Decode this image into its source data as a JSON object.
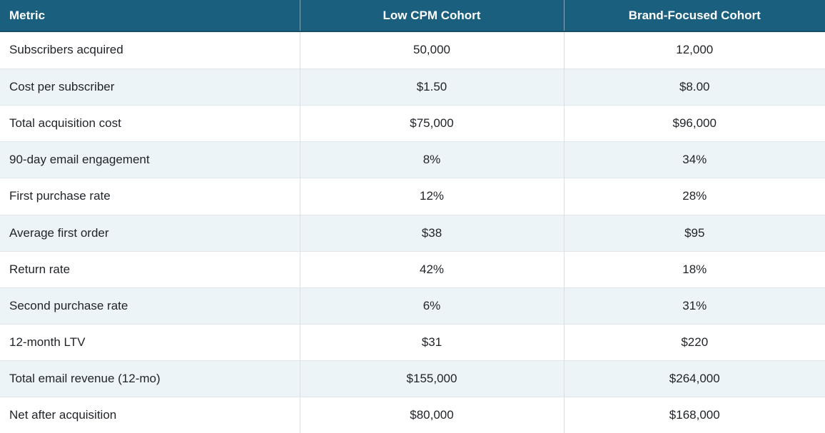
{
  "chart_data": {
    "type": "table",
    "columns": [
      "Metric",
      "Low CPM Cohort",
      "Brand-Focused Cohort"
    ],
    "rows": [
      [
        "Subscribers acquired",
        "50,000",
        "12,000"
      ],
      [
        "Cost per subscriber",
        "$1.50",
        "$8.00"
      ],
      [
        "Total acquisition cost",
        "$75,000",
        "$96,000"
      ],
      [
        "90-day email engagement",
        "8%",
        "34%"
      ],
      [
        "First purchase rate",
        "12%",
        "28%"
      ],
      [
        "Average first order",
        "$38",
        "$95"
      ],
      [
        "Return rate",
        "42%",
        "18%"
      ],
      [
        "Second purchase rate",
        "6%",
        "31%"
      ],
      [
        "12-month LTV",
        "$31",
        "$220"
      ],
      [
        "Total email revenue (12-mo)",
        "$155,000",
        "$264,000"
      ],
      [
        "Net after acquisition",
        "$80,000",
        "$168,000"
      ]
    ]
  },
  "colors": {
    "header_bg": "#1A5F7D",
    "header_text": "#FFFFFF",
    "stripe_bg": "#EDF4F8",
    "row_bg": "#FFFFFF",
    "body_text": "#1F2328",
    "border_vertical": "#D9DFE3",
    "border_horizontal": "#E0E6EA"
  }
}
